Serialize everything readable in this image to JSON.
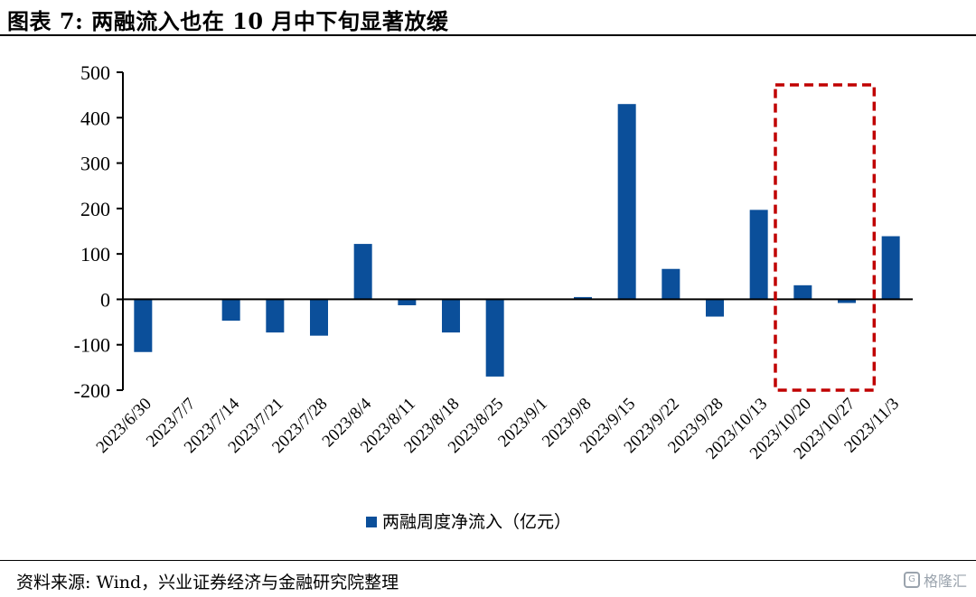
{
  "header": {
    "title": "图表 7:  两融流入也在 10 月中下旬显著放缓"
  },
  "footer": {
    "source": "资料来源:  Wind，兴业证券经济与金融研究院整理",
    "watermark": "格隆汇"
  },
  "colors": {
    "bar": "#0B4F9A",
    "highlight_box": "#C00000",
    "axis": "#000000"
  },
  "chart_data": {
    "type": "bar",
    "categories": [
      "2023/6/30",
      "2023/7/7",
      "2023/7/14",
      "2023/7/21",
      "2023/7/28",
      "2023/8/4",
      "2023/8/11",
      "2023/8/18",
      "2023/8/25",
      "2023/9/1",
      "2023/9/8",
      "2023/9/15",
      "2023/9/22",
      "2023/9/28",
      "2023/10/13",
      "2023/10/20",
      "2023/10/27",
      "2023/11/3"
    ],
    "series": [
      {
        "name": "两融周度净流入（亿元）",
        "values": [
          -116,
          0,
          -47,
          -73,
          -80,
          122,
          -13,
          -73,
          -170,
          0,
          5,
          430,
          67,
          -38,
          197,
          31,
          -8,
          139
        ]
      }
    ],
    "ylim": [
      -200,
      500
    ],
    "yticks": [
      500,
      400,
      300,
      200,
      100,
      0,
      -100,
      -200
    ],
    "legend_position": "bottom",
    "highlight": {
      "from": "2023/10/20",
      "to": "2023/10/27",
      "style": "dashed box"
    },
    "grid": false
  }
}
